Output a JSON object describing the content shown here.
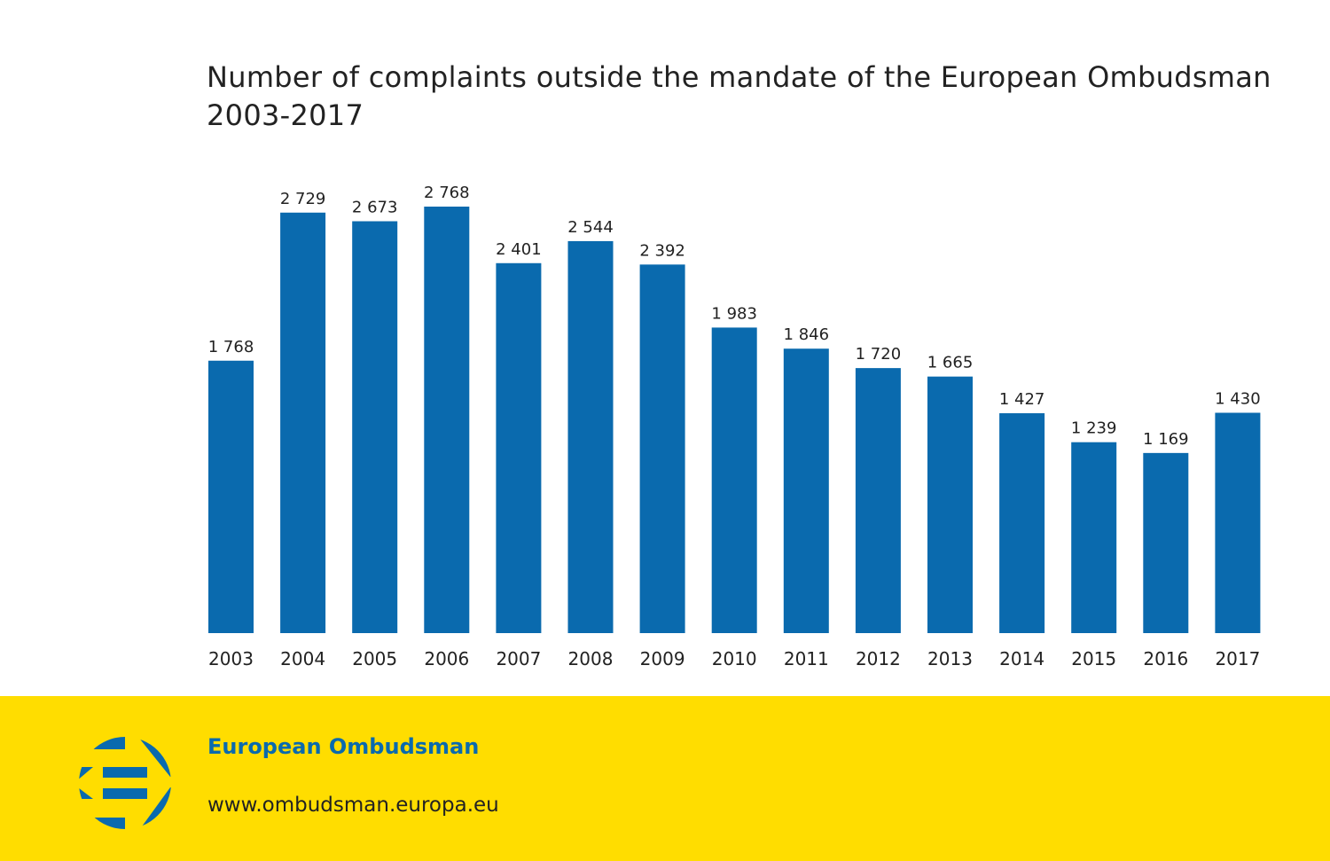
{
  "chart_data": {
    "type": "bar",
    "title": "Number of complaints outside the mandate of the European Ombudsman",
    "subtitle": "2003-2017",
    "categories": [
      "2003",
      "2004",
      "2005",
      "2006",
      "2007",
      "2008",
      "2009",
      "2010",
      "2011",
      "2012",
      "2013",
      "2014",
      "2015",
      "2016",
      "2017"
    ],
    "values": [
      1768,
      2729,
      2673,
      2768,
      2401,
      2544,
      2392,
      1983,
      1846,
      1720,
      1665,
      1427,
      1239,
      1169,
      1430
    ],
    "value_labels": [
      "1 768",
      "2 729",
      "2 673",
      "2 768",
      "2 401",
      "2 544",
      "2 392",
      "1 983",
      "1 846",
      "1 720",
      "1 665",
      "1 427",
      "1 239",
      "1 169",
      "1 430"
    ],
    "xlabel": "",
    "ylabel": "",
    "ylim": [
      0,
      2768
    ],
    "grid": false,
    "bar_color": "#0A6AAE"
  },
  "footer": {
    "organisation": "European Ombudsman",
    "url": "www.ombudsman.europa.eu",
    "background_color": "#FFDD00",
    "logo_icon": "european-ombudsman-logo"
  }
}
